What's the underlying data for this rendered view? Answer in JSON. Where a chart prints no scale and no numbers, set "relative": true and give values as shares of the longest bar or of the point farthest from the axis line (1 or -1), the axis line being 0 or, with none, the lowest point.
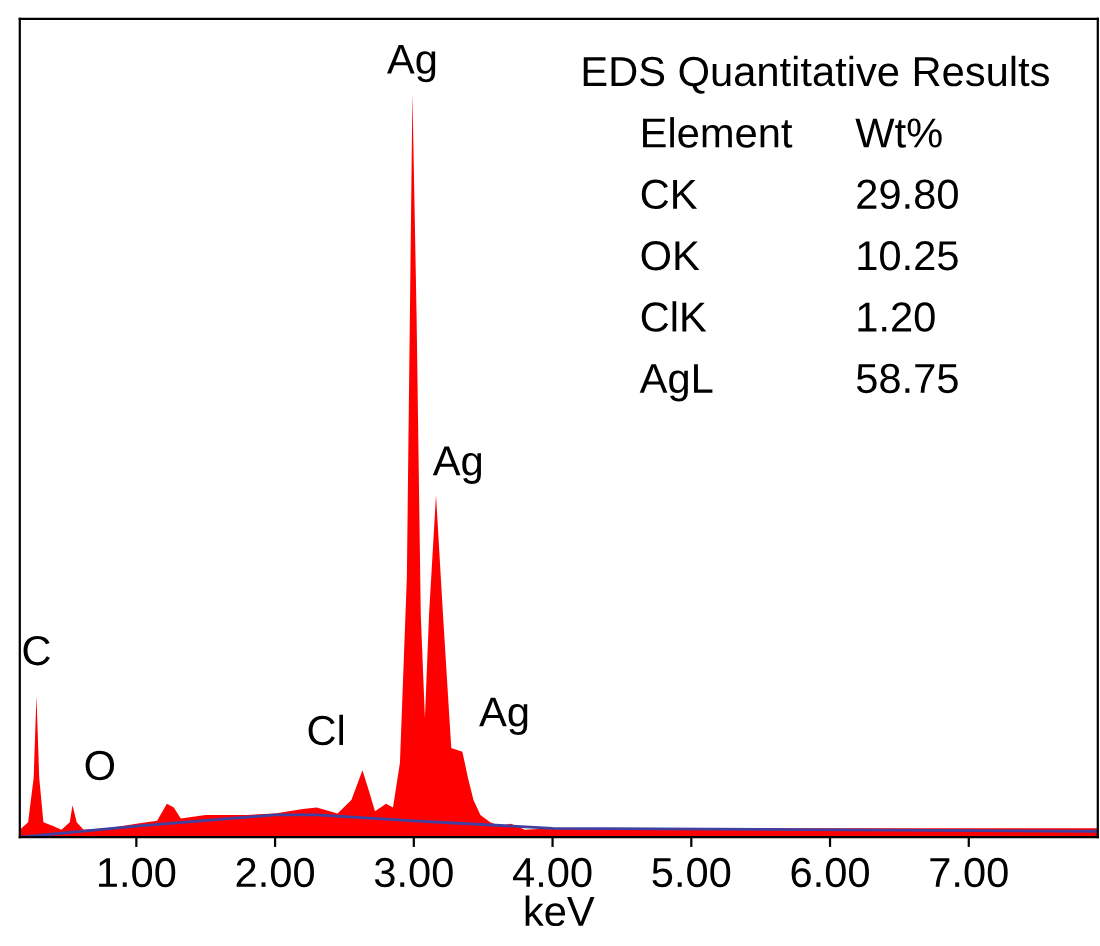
{
  "chart_data": {
    "type": "area",
    "relative": true,
    "xlabel": "keV",
    "xlim": [
      0.16,
      7.93
    ],
    "xticks": [
      {
        "value": 1,
        "label": "1.00"
      },
      {
        "value": 2,
        "label": "2.00"
      },
      {
        "value": 3,
        "label": "3.00"
      },
      {
        "value": 4,
        "label": "4.00"
      },
      {
        "value": 5,
        "label": "5.00"
      },
      {
        "value": 6,
        "label": "6.00"
      },
      {
        "value": 7,
        "label": "7.00"
      }
    ],
    "tick_labels": "x",
    "grid": false,
    "series": [
      {
        "color": "#ff0000",
        "x": [
          0.16,
          0.22,
          0.26,
          0.28,
          0.3,
          0.33,
          0.4,
          0.46,
          0.52,
          0.54,
          0.57,
          0.62,
          0.8,
          1.0,
          1.15,
          1.22,
          1.27,
          1.32,
          1.5,
          1.8,
          2.0,
          2.2,
          2.3,
          2.45,
          2.55,
          2.63,
          2.68,
          2.72,
          2.8,
          2.85,
          2.9,
          2.95,
          2.99,
          3.02,
          3.05,
          3.08,
          3.11,
          3.16,
          3.21,
          3.27,
          3.35,
          3.39,
          3.43,
          3.48,
          3.55,
          3.62,
          3.7,
          3.8,
          4.0,
          5.0,
          6.0,
          7.0,
          7.93
        ],
        "values": [
          0.01,
          0.02,
          0.08,
          0.19,
          0.08,
          0.02,
          0.015,
          0.01,
          0.02,
          0.043,
          0.02,
          0.01,
          0.012,
          0.018,
          0.022,
          0.045,
          0.04,
          0.025,
          0.03,
          0.03,
          0.032,
          0.038,
          0.04,
          0.032,
          0.05,
          0.09,
          0.06,
          0.035,
          0.045,
          0.04,
          0.1,
          0.35,
          1.0,
          0.7,
          0.3,
          0.16,
          0.3,
          0.46,
          0.3,
          0.12,
          0.115,
          0.08,
          0.05,
          0.03,
          0.02,
          0.015,
          0.018,
          0.01,
          0.012,
          0.012,
          0.012,
          0.012,
          0.012
        ]
      },
      {
        "type": "line",
        "color": "#4040a0",
        "x": [
          0.16,
          1.0,
          2.0,
          2.3,
          3.0,
          4.0,
          7.93
        ],
        "values": [
          0.0,
          0.015,
          0.03,
          0.03,
          0.022,
          0.012,
          0.008
        ]
      }
    ],
    "annotations": [
      {
        "text": "Ag",
        "x": 2.99,
        "y": 1.0
      },
      {
        "text": "Ag",
        "x": 3.16,
        "y": 0.46
      },
      {
        "text": "Ag",
        "x": 3.35,
        "y": 0.115
      },
      {
        "text": "Cl",
        "x": 2.63,
        "y": 0.09
      },
      {
        "text": "C",
        "x": 0.28,
        "y": 0.19
      },
      {
        "text": "O",
        "x": 0.54,
        "y": 0.043
      },
      "EDS Quantitative Results",
      "Element",
      "Wt%",
      "CK",
      "29.80",
      "OK",
      "10.25",
      "ClK",
      "1.20",
      "AgL",
      "58.75"
    ]
  }
}
